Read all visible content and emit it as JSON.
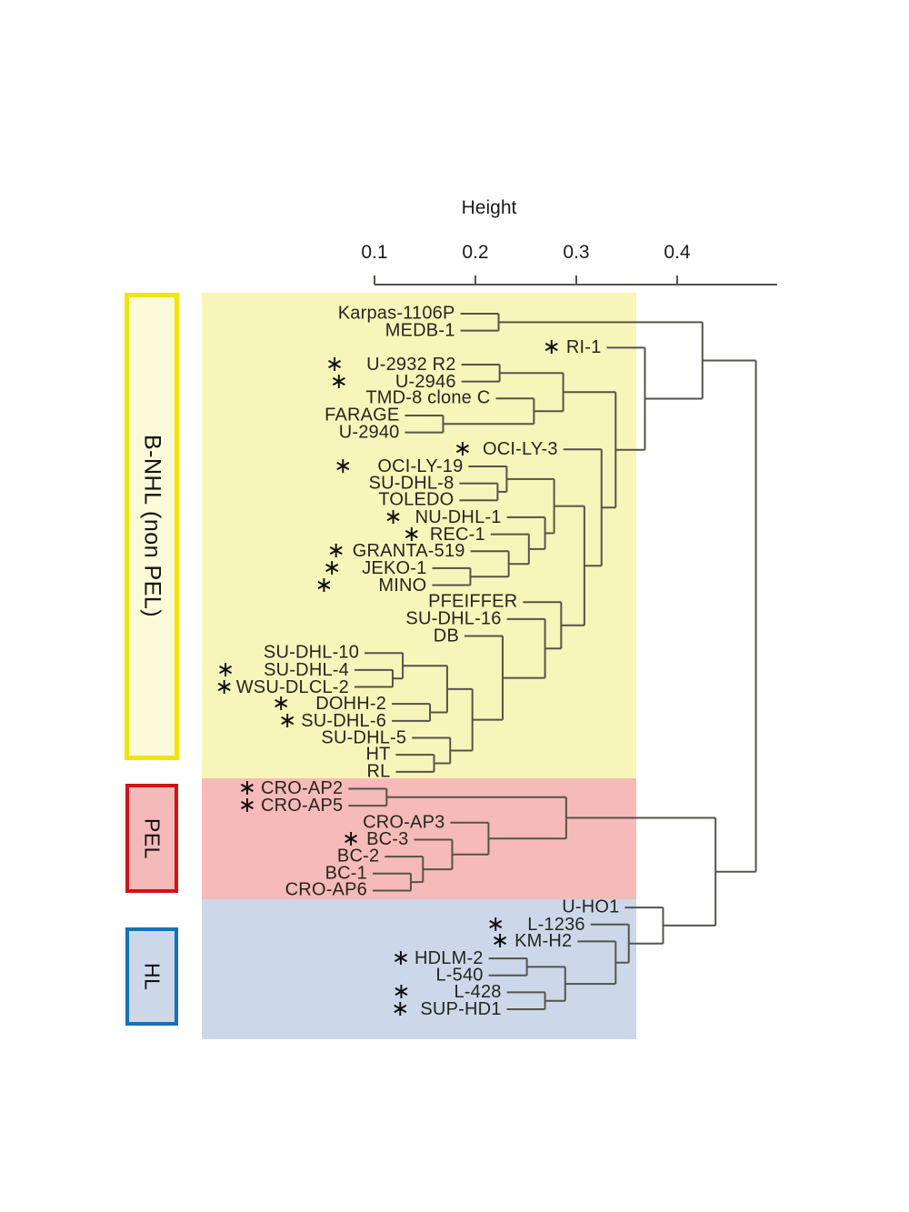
{
  "figure": {
    "background": "#ffffff"
  },
  "axis": {
    "title": "Height",
    "tick_labels": [
      "0.1",
      "0.2",
      "0.3",
      "0.4"
    ],
    "tick_values": [
      0.1,
      0.2,
      0.3,
      0.4
    ],
    "line_color": "#55544a",
    "text_color": "#1b1b1b"
  },
  "style": {
    "line_color": "#55544a",
    "label_color": "#26261f",
    "marker_glyph": "∗"
  },
  "groups": [
    {
      "label": "B-NHL (non PEL)",
      "band_color": "#f8f5ba",
      "box_fill": "#fcfad8",
      "box_border": "#f0e40c"
    },
    {
      "label": "PEL",
      "band_color": "#f6bab8",
      "box_fill": "#f5b9b9",
      "box_border": "#cf1418"
    },
    {
      "label": "HL",
      "band_color": "#ccd8ea",
      "box_fill": "#ccd8ea",
      "box_border": "#1a6fb5"
    }
  ],
  "leaves": [
    {
      "label": "Karpas-1106P",
      "group": "B-NHL (non PEL)",
      "marked": false
    },
    {
      "label": "MEDB-1",
      "group": "B-NHL (non PEL)",
      "marked": false
    },
    {
      "label": "RI-1",
      "group": "B-NHL (non PEL)",
      "marked": true,
      "gap": 6
    },
    {
      "label": "U-2932 R2",
      "group": "B-NHL (non PEL)",
      "marked": true,
      "gap": 25
    },
    {
      "label": "U-2946",
      "group": "B-NHL (non PEL)",
      "marked": true,
      "gap": 52
    },
    {
      "label": "TMD-8 clone C",
      "group": "B-NHL (non PEL)",
      "marked": false
    },
    {
      "label": "FARAGE",
      "group": "B-NHL (non PEL)",
      "marked": false
    },
    {
      "label": "U-2940",
      "group": "B-NHL (non PEL)",
      "marked": false
    },
    {
      "label": "OCI-LY-3",
      "group": "B-NHL (non PEL)",
      "marked": true,
      "gap": 12
    },
    {
      "label": "OCI-LY-19",
      "group": "B-NHL (non PEL)",
      "marked": true,
      "gap": 28
    },
    {
      "label": "SU-DHL-8",
      "group": "B-NHL (non PEL)",
      "marked": false
    },
    {
      "label": "TOLEDO",
      "group": "B-NHL (non PEL)",
      "marked": false
    },
    {
      "label": "NU-DHL-1",
      "group": "B-NHL (non PEL)",
      "marked": true,
      "gap": 14
    },
    {
      "label": "REC-1",
      "group": "B-NHL (non PEL)",
      "marked": true,
      "gap": 10
    },
    {
      "label": "GRANTA-519",
      "group": "B-NHL (non PEL)",
      "marked": true,
      "gap": 8
    },
    {
      "label": "JEKO-1",
      "group": "B-NHL (non PEL)",
      "marked": true,
      "gap": 23
    },
    {
      "label": "MINO",
      "group": "B-NHL (non PEL)",
      "marked": true,
      "gap": 50
    },
    {
      "label": "PFEIFFER",
      "group": "B-NHL (non PEL)",
      "marked": false
    },
    {
      "label": "SU-DHL-16",
      "group": "B-NHL (non PEL)",
      "marked": false
    },
    {
      "label": "DB",
      "group": "B-NHL (non PEL)",
      "marked": false
    },
    {
      "label": "SU-DHL-10",
      "group": "B-NHL (non PEL)",
      "marked": false
    },
    {
      "label": "SU-DHL-4",
      "group": "B-NHL (non PEL)",
      "marked": true,
      "gap": 32
    },
    {
      "label": "WSU-DLCL-2",
      "group": "B-NHL (non PEL)",
      "marked": true,
      "gap": 3
    },
    {
      "label": "DOHH-2",
      "group": "B-NHL (non PEL)",
      "marked": true,
      "gap": 28
    },
    {
      "label": "SU-DHL-6",
      "group": "B-NHL (non PEL)",
      "marked": true,
      "gap": 5
    },
    {
      "label": "SU-DHL-5",
      "group": "B-NHL (non PEL)",
      "marked": false
    },
    {
      "label": "HT",
      "group": "B-NHL (non PEL)",
      "marked": false
    },
    {
      "label": "RL",
      "group": "B-NHL (non PEL)",
      "marked": false
    },
    {
      "label": "CRO-AP2",
      "group": "PEL",
      "marked": true,
      "gap": 5
    },
    {
      "label": "CRO-AP5",
      "group": "PEL",
      "marked": true,
      "gap": 5
    },
    {
      "label": "CRO-AP3",
      "group": "PEL",
      "marked": false
    },
    {
      "label": "BC-3",
      "group": "PEL",
      "marked": true,
      "gap": 7
    },
    {
      "label": "BC-2",
      "group": "PEL",
      "marked": false
    },
    {
      "label": "BC-1",
      "group": "PEL",
      "marked": false
    },
    {
      "label": "CRO-AP6",
      "group": "PEL",
      "marked": false
    },
    {
      "label": "U-HO1",
      "group": "HL",
      "marked": false
    },
    {
      "label": "L-1236",
      "group": "HL",
      "marked": true,
      "gap": 25
    },
    {
      "label": "KM-H2",
      "group": "HL",
      "marked": true,
      "gap": 6
    },
    {
      "label": "HDLM-2",
      "group": "HL",
      "marked": true,
      "gap": 5
    },
    {
      "label": "L-540",
      "group": "HL",
      "marked": false
    },
    {
      "label": "L-428",
      "group": "HL",
      "marked": true,
      "gap": 48
    },
    {
      "label": "SUP-HD1",
      "group": "HL",
      "marked": true,
      "gap": 12
    }
  ],
  "chart_data": {
    "type": "dendrogram",
    "orientation": "horizontal",
    "title": "",
    "xlabel": "Height",
    "axis_range": [
      0.1,
      0.5
    ],
    "tree": {
      "h": 0.478,
      "c": [
        {
          "h": 0.425,
          "c": [
            {
              "h": 0.223,
              "c": [
                "Karpas-1106P",
                "MEDB-1"
              ]
            },
            {
              "h": 0.368,
              "c": [
                "RI-1",
                {
                  "h": 0.339,
                  "c": [
                    {
                      "h": 0.287,
                      "c": [
                        {
                          "h": 0.224,
                          "c": [
                            "U-2932 R2",
                            "U-2946"
                          ]
                        },
                        {
                          "h": 0.258,
                          "c": [
                            "TMD-8 clone C",
                            {
                              "h": 0.168,
                              "c": [
                                "FARAGE",
                                "U-2940"
                              ]
                            }
                          ]
                        }
                      ]
                    },
                    {
                      "h": 0.325,
                      "c": [
                        "OCI-LY-3",
                        {
                          "h": 0.308,
                          "c": [
                            {
                              "h": 0.278,
                              "c": [
                                {
                                  "h": 0.231,
                                  "c": [
                                    "OCI-LY-19",
                                    {
                                      "h": 0.222,
                                      "c": [
                                        "SU-DHL-8",
                                        "TOLEDO"
                                      ]
                                    }
                                  ]
                                },
                                {
                                  "h": 0.269,
                                  "c": [
                                    "NU-DHL-1",
                                    {
                                      "h": 0.253,
                                      "c": [
                                        "REC-1",
                                        {
                                          "h": 0.233,
                                          "c": [
                                            "GRANTA-519",
                                            {
                                              "h": 0.195,
                                              "c": [
                                                "JEKO-1",
                                                "MINO"
                                              ]
                                            }
                                          ]
                                        }
                                      ]
                                    }
                                  ]
                                }
                              ]
                            },
                            {
                              "h": 0.285,
                              "c": [
                                "PFEIFFER",
                                {
                                  "h": 0.269,
                                  "c": [
                                    "SU-DHL-16",
                                    {
                                      "h": 0.227,
                                      "c": [
                                        "DB",
                                        {
                                          "h": 0.197,
                                          "c": [
                                            {
                                              "h": 0.172,
                                              "c": [
                                                {
                                                  "h": 0.128,
                                                  "c": [
                                                    "SU-DHL-10",
                                                    {
                                                      "h": 0.118,
                                                      "c": [
                                                        "SU-DHL-4",
                                                        "WSU-DLCL-2"
                                                      ]
                                                    }
                                                  ]
                                                },
                                                {
                                                  "h": 0.155,
                                                  "c": [
                                                    "DOHH-2",
                                                    "SU-DHL-6"
                                                  ]
                                                }
                                              ]
                                            },
                                            {
                                              "h": 0.175,
                                              "c": [
                                                "SU-DHL-5",
                                                {
                                                  "h": 0.159,
                                                  "c": [
                                                    "HT",
                                                    "RL"
                                                  ]
                                                }
                                              ]
                                            }
                                          ]
                                        }
                                      ]
                                    }
                                  ]
                                }
                              ]
                            }
                          ]
                        }
                      ]
                    }
                  ]
                }
              ]
            }
          ]
        },
        {
          "h": 0.438,
          "c": [
            {
              "h": 0.29,
              "c": [
                {
                  "h": 0.112,
                  "c": [
                    "CRO-AP2",
                    "CRO-AP5"
                  ]
                },
                {
                  "h": 0.213,
                  "c": [
                    "CRO-AP3",
                    {
                      "h": 0.177,
                      "c": [
                        "BC-3",
                        {
                          "h": 0.148,
                          "c": [
                            "BC-2",
                            {
                              "h": 0.136,
                              "c": [
                                "BC-1",
                                "CRO-AP6"
                              ]
                            }
                          ]
                        }
                      ]
                    }
                  ]
                }
              ]
            },
            {
              "h": 0.386,
              "c": [
                "U-HO1",
                {
                  "h": 0.352,
                  "c": [
                    "L-1236",
                    {
                      "h": 0.339,
                      "c": [
                        "KM-H2",
                        {
                          "h": 0.289,
                          "c": [
                            {
                              "h": 0.251,
                              "c": [
                                "HDLM-2",
                                "L-540"
                              ]
                            },
                            {
                              "h": 0.269,
                              "c": [
                                "L-428",
                                "SUP-HD1"
                              ]
                            }
                          ]
                        }
                      ]
                    }
                  ]
                }
              ]
            }
          ]
        }
      ]
    }
  }
}
